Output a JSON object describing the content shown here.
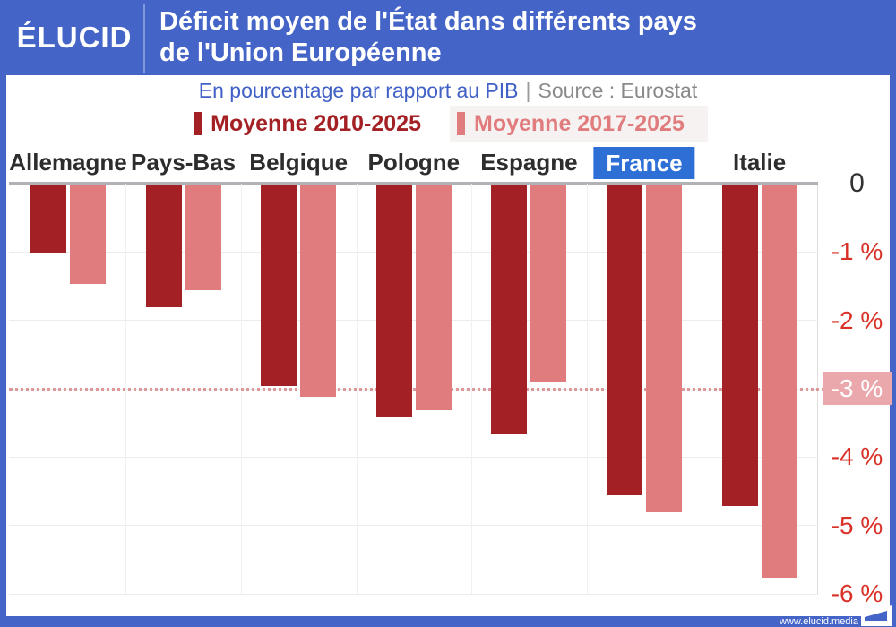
{
  "header": {
    "logo": "ÉLUCID",
    "title_line1": "Déficit moyen de l'État dans différents pays",
    "title_line2": "de l'Union Européenne"
  },
  "subtitle": {
    "text": "En pourcentage par rapport au PIB",
    "separator": "|",
    "source": "Source : Eurostat"
  },
  "footer": {
    "url": "www.elucid.media"
  },
  "colors": {
    "brand_blue": "#4564c7",
    "highlight_blue": "#2e6fd6",
    "dark_red": "#a32125",
    "light_red": "#e17c7e",
    "axis_red": "#d93229",
    "badge_pink": "#eaa8ad",
    "subtitle_blue": "#4161c6",
    "subtitle_gray": "#8a8a8a"
  },
  "chart_data": {
    "type": "bar",
    "title": "Déficit moyen de l'État dans différents pays de l'Union Européenne",
    "subtitle": "En pourcentage par rapport au PIB",
    "source": "Source : Eurostat",
    "categories": [
      "Allemagne",
      "Pays-Bas",
      "Belgique",
      "Pologne",
      "Espagne",
      "France",
      "Italie"
    ],
    "highlighted_category": "France",
    "series": [
      {
        "name": "Moyenne 2010-2025",
        "color": "#a32125",
        "values": [
          -1.0,
          -1.8,
          -2.95,
          -3.4,
          -3.65,
          -4.55,
          -4.7
        ]
      },
      {
        "name": "Moyenne 2017-2025",
        "color": "#e17c7e",
        "values": [
          -1.45,
          -1.55,
          -3.1,
          -3.3,
          -2.9,
          -4.8,
          -5.75
        ]
      }
    ],
    "ylim": [
      -6,
      0
    ],
    "yticks": [
      "0",
      "-1 %",
      "-2 %",
      "-3 %",
      "-4 %",
      "-5 %",
      "-6 %"
    ],
    "reference_line": {
      "value": -3,
      "style": "dotted",
      "color": "#dd989a",
      "label": "-3 %"
    },
    "grid": true,
    "legend_position": "top",
    "bar_orientation": "vertical-negative"
  }
}
